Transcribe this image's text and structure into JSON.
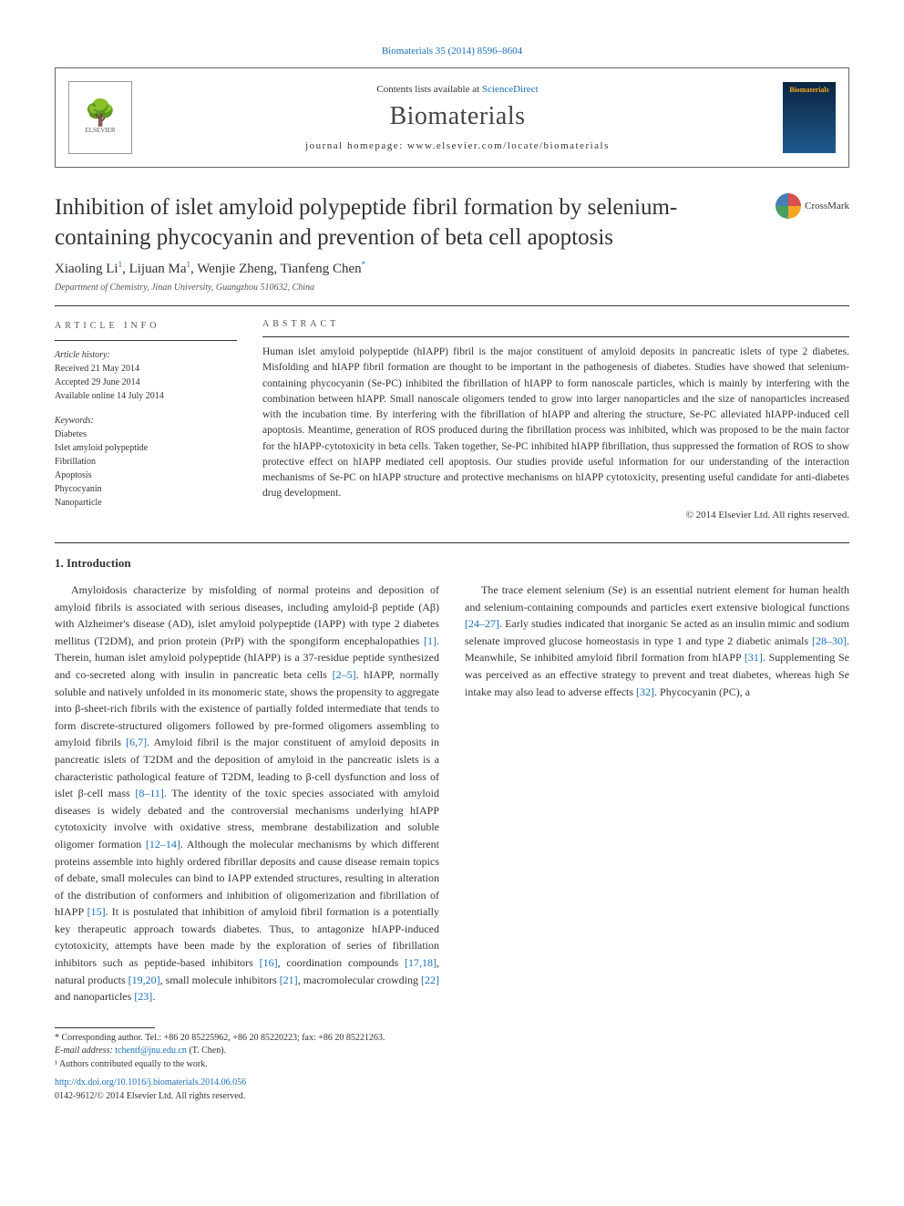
{
  "header": {
    "citation_link": "Biomaterials 35 (2014) 8596–8604",
    "contents_prefix": "Contents lists available at ",
    "contents_link": "ScienceDirect",
    "journal_name": "Biomaterials",
    "homepage_prefix": "journal homepage: ",
    "homepage_url": "www.elsevier.com/locate/biomaterials",
    "publisher": "ELSEVIER",
    "cover_text": "Biomaterials"
  },
  "title": "Inhibition of islet amyloid polypeptide fibril formation by selenium-containing phycocyanin and prevention of beta cell apoptosis",
  "crossmark_label": "CrossMark",
  "authors_html_parts": {
    "a1": "Xiaoling Li",
    "s1": "1",
    "a2": ", Lijuan Ma",
    "s2": "1",
    "a3": ", Wenjie Zheng, Tianfeng Chen",
    "s3": "*"
  },
  "affiliation": "Department of Chemistry, Jinan University, Guangzhou 510632, China",
  "article_info": {
    "label": "ARTICLE INFO",
    "history_heading": "Article history:",
    "history_lines": [
      "Received 21 May 2014",
      "Accepted 29 June 2014",
      "Available online 14 July 2014"
    ],
    "keywords_heading": "Keywords:",
    "keywords": [
      "Diabetes",
      "Islet amyloid polypeptide",
      "Fibrillation",
      "Apoptosis",
      "Phycocyanin",
      "Nanoparticle"
    ]
  },
  "abstract": {
    "label": "ABSTRACT",
    "text": "Human islet amyloid polypeptide (hIAPP) fibril is the major constituent of amyloid deposits in pancreatic islets of type 2 diabetes. Misfolding and hIAPP fibril formation are thought to be important in the pathogenesis of diabetes. Studies have showed that selenium-containing phycocyanin (Se-PC) inhibited the fibrillation of hIAPP to form nanoscale particles, which is mainly by interfering with the combination between hIAPP. Small nanoscale oligomers tended to grow into larger nanoparticles and the size of nanoparticles increased with the incubation time. By interfering with the fibrillation of hIAPP and altering the structure, Se-PC alleviated hIAPP-induced cell apoptosis. Meantime, generation of ROS produced during the fibrillation process was inhibited, which was proposed to be the main factor for the hIAPP-cytotoxicity in beta cells. Taken together, Se-PC inhibited hIAPP fibrillation, thus suppressed the formation of ROS to show protective effect on hIAPP mediated cell apoptosis. Our studies provide useful information for our understanding of the interaction mechanisms of Se-PC on hIAPP structure and protective mechanisms on hIAPP cytotoxicity, presenting useful candidate for anti-diabetes drug development.",
    "copyright": "© 2014 Elsevier Ltd. All rights reserved."
  },
  "introduction": {
    "heading": "1. Introduction",
    "p1_a": "Amyloidosis characterize by misfolding of normal proteins and deposition of amyloid fibrils is associated with serious diseases, including amyloid-β peptide (Aβ) with Alzheimer's disease (AD), islet amyloid polypeptide (IAPP) with type 2 diabetes mellitus (T2DM), and prion protein (PrP) with the spongiform encephalopathies ",
    "r1": "[1]",
    "p1_b": ". Therein, human islet amyloid polypeptide (hIAPP) is a 37-residue peptide synthesized and co-secreted along with insulin in pancreatic beta cells ",
    "r2": "[2–5]",
    "p1_c": ". hIAPP, normally soluble and natively unfolded in its monomeric state, shows the propensity to aggregate into β-sheet-rich fibrils with the existence of partially folded intermediate that tends to form discrete-structured oligomers followed by pre-formed oligomers assembling to amyloid fibrils ",
    "r3": "[6,7]",
    "p1_d": ". Amyloid fibril is the major constituent of amyloid deposits in pancreatic islets of T2DM and the deposition of amyloid in the pancreatic islets is a characteristic pathological feature of T2DM, leading to β-cell dysfunction and loss of islet β-cell mass ",
    "r4": "[8–11]",
    "p1_e": ". The identity of the toxic species associated with amyloid diseases is widely debated and the controversial mechanisms underlying hIAPP cytotoxicity involve with oxidative stress, membrane destabilization and soluble oligomer formation ",
    "r5": "[12–14]",
    "p1_f": ". Although the molecular mechanisms by which different proteins assemble into highly ordered fibrillar deposits and cause disease remain topics of debate, small molecules can bind to IAPP extended structures, resulting in alteration of the distribution of conformers and inhibition of oligomerization and fibrillation of hIAPP ",
    "r6": "[15]",
    "p1_g": ". It is postulated that inhibition of amyloid fibril formation is a potentially key therapeutic approach towards diabetes. Thus, to antagonize hIAPP-induced cytotoxicity, attempts have been made by the exploration of series of fibrillation inhibitors such as peptide-based inhibitors ",
    "r7": "[16]",
    "p1_h": ", coordination compounds ",
    "r8": "[17,18]",
    "p1_i": ", natural products ",
    "r9": "[19,20]",
    "p1_j": ", small molecule inhibitors ",
    "r10": "[21]",
    "p1_k": ", macromolecular crowding ",
    "r11": "[22]",
    "p1_l": " and nanoparticles ",
    "r12": "[23]",
    "p1_m": ".",
    "p2_a": "The trace element selenium (Se) is an essential nutrient element for human health and selenium-containing compounds and particles exert extensive biological functions ",
    "r13": "[24–27]",
    "p2_b": ". Early studies indicated that inorganic Se acted as an insulin mimic and sodium selenate improved glucose homeostasis in type 1 and type 2 diabetic animals ",
    "r14": "[28–30]",
    "p2_c": ". Meanwhile, Se inhibited amyloid fibril formation from hIAPP ",
    "r15": "[31]",
    "p2_d": ". Supplementing Se was perceived as an effective strategy to prevent and treat diabetes, whereas high Se intake may also lead to adverse effects ",
    "r16": "[32]",
    "p2_e": ". Phycocyanin (PC), a"
  },
  "footer": {
    "corresponding": "* Corresponding author. Tel.: +86 20 85225962, +86 20 85220223; fax: +86 20 85221263.",
    "email_label": "E-mail address: ",
    "email": "tchentf@jnu.edu.cn",
    "email_suffix": " (T. Chen).",
    "note1": "¹ Authors contributed equally to the work.",
    "doi": "http://dx.doi.org/10.1016/j.biomaterials.2014.06.056",
    "issn": "0142-9612/© 2014 Elsevier Ltd. All rights reserved."
  },
  "colors": {
    "link": "#1a6eb8",
    "text": "#333333",
    "border": "#666666",
    "cover_top": "#0a2540",
    "cover_bottom": "#1e5a8e",
    "cover_text": "#f5a623"
  }
}
